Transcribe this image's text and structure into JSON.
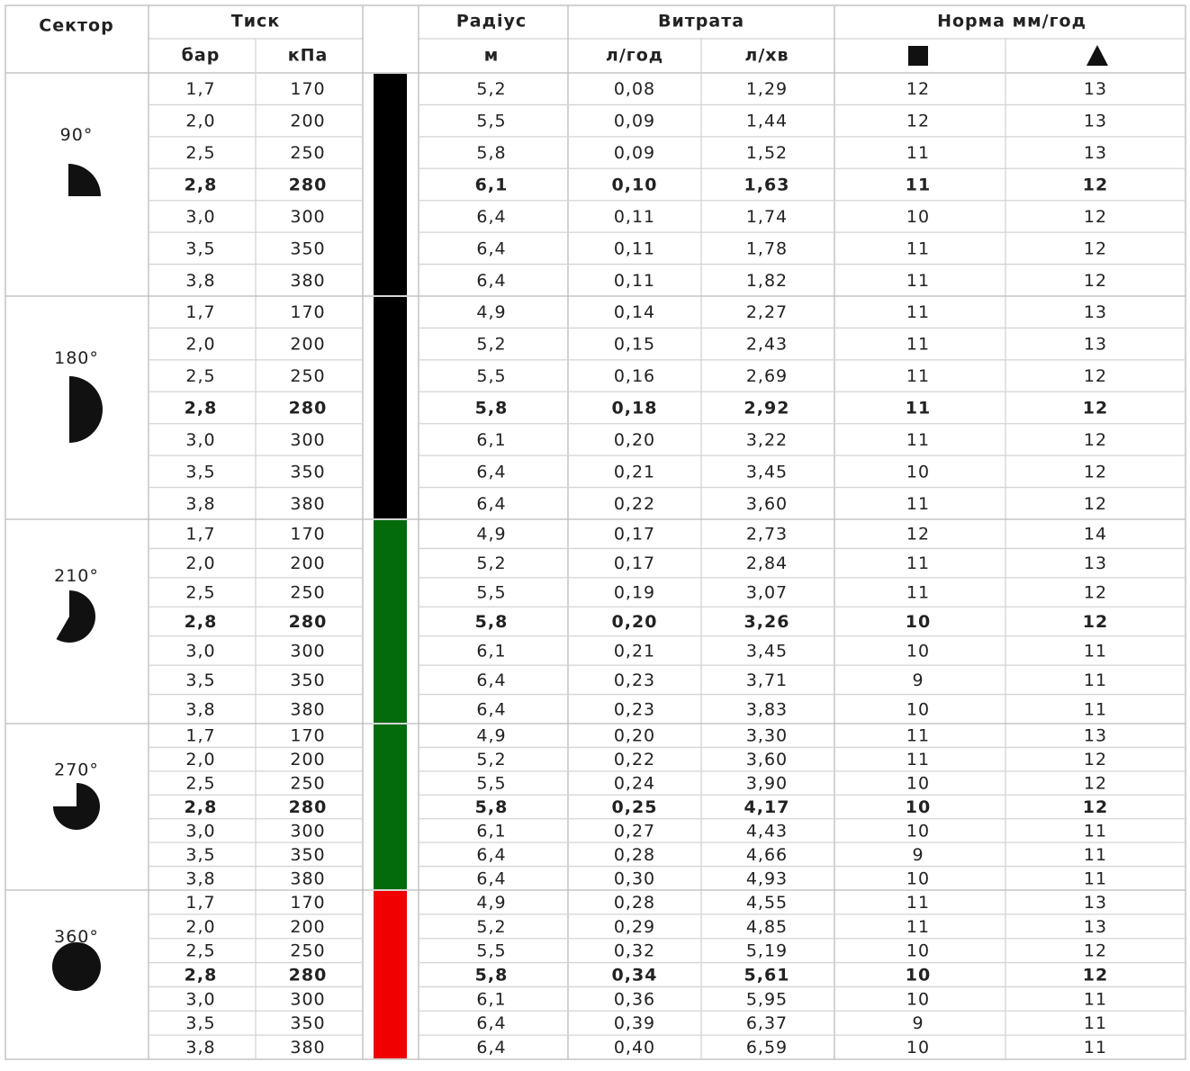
{
  "header": {
    "sector": "Сектор",
    "pressure": "Тиск",
    "bar": "бар",
    "kpa": "кПа",
    "radius": "Радіус",
    "m": "м",
    "flow": "Витрата",
    "lph": "л/год",
    "lpm": "л/хв",
    "rate": "Норма мм/год"
  },
  "groups": [
    {
      "sector": "90°",
      "color": "#000000",
      "rows": [
        [
          "1,7",
          "170",
          "5,2",
          "0,08",
          "1,29",
          "12",
          "13"
        ],
        [
          "2,0",
          "200",
          "5,5",
          "0,09",
          "1,44",
          "12",
          "13"
        ],
        [
          "2,5",
          "250",
          "5,8",
          "0,09",
          "1,52",
          "11",
          "13"
        ],
        [
          "2,8",
          "280",
          "6,1",
          "0,10",
          "1,63",
          "11",
          "12"
        ],
        [
          "3,0",
          "300",
          "6,4",
          "0,11",
          "1,74",
          "10",
          "12"
        ],
        [
          "3,5",
          "350",
          "6,4",
          "0,11",
          "1,78",
          "11",
          "12"
        ],
        [
          "3,8",
          "380",
          "6,4",
          "0,11",
          "1,82",
          "11",
          "12"
        ]
      ]
    },
    {
      "sector": "180°",
      "color": "#000000",
      "rows": [
        [
          "1,7",
          "170",
          "4,9",
          "0,14",
          "2,27",
          "11",
          "13"
        ],
        [
          "2,0",
          "200",
          "5,2",
          "0,15",
          "2,43",
          "11",
          "13"
        ],
        [
          "2,5",
          "250",
          "5,5",
          "0,16",
          "2,69",
          "11",
          "12"
        ],
        [
          "2,8",
          "280",
          "5,8",
          "0,18",
          "2,92",
          "11",
          "12"
        ],
        [
          "3,0",
          "300",
          "6,1",
          "0,20",
          "3,22",
          "11",
          "12"
        ],
        [
          "3,5",
          "350",
          "6,4",
          "0,21",
          "3,45",
          "10",
          "12"
        ],
        [
          "3,8",
          "380",
          "6,4",
          "0,22",
          "3,60",
          "11",
          "12"
        ]
      ]
    },
    {
      "sector": "210°",
      "color": "#046b0c",
      "rows": [
        [
          "1,7",
          "170",
          "4,9",
          "0,17",
          "2,73",
          "12",
          "14"
        ],
        [
          "2,0",
          "200",
          "5,2",
          "0,17",
          "2,84",
          "11",
          "13"
        ],
        [
          "2,5",
          "250",
          "5,5",
          "0,19",
          "3,07",
          "11",
          "12"
        ],
        [
          "2,8",
          "280",
          "5,8",
          "0,20",
          "3,26",
          "10",
          "12"
        ],
        [
          "3,0",
          "300",
          "6,1",
          "0,21",
          "3,45",
          "10",
          "11"
        ],
        [
          "3,5",
          "350",
          "6,4",
          "0,23",
          "3,71",
          "9",
          "11"
        ],
        [
          "3,8",
          "380",
          "6,4",
          "0,23",
          "3,83",
          "10",
          "11"
        ]
      ]
    },
    {
      "sector": "270°",
      "color": "#046b0c",
      "rows": [
        [
          "1,7",
          "170",
          "4,9",
          "0,20",
          "3,30",
          "11",
          "13"
        ],
        [
          "2,0",
          "200",
          "5,2",
          "0,22",
          "3,60",
          "11",
          "12"
        ],
        [
          "2,5",
          "250",
          "5,5",
          "0,24",
          "3,90",
          "10",
          "12"
        ],
        [
          "2,8",
          "280",
          "5,8",
          "0,25",
          "4,17",
          "10",
          "12"
        ],
        [
          "3,0",
          "300",
          "6,1",
          "0,27",
          "4,43",
          "10",
          "11"
        ],
        [
          "3,5",
          "350",
          "6,4",
          "0,28",
          "4,66",
          "9",
          "11"
        ],
        [
          "3,8",
          "380",
          "6,4",
          "0,30",
          "4,93",
          "10",
          "11"
        ]
      ]
    },
    {
      "sector": "360°",
      "color": "#f00000",
      "rows": [
        [
          "1,7",
          "170",
          "4,9",
          "0,28",
          "4,55",
          "11",
          "13"
        ],
        [
          "2,0",
          "200",
          "5,2",
          "0,29",
          "4,85",
          "11",
          "13"
        ],
        [
          "2,5",
          "250",
          "5,5",
          "0,32",
          "5,19",
          "10",
          "12"
        ],
        [
          "2,8",
          "280",
          "5,8",
          "0,34",
          "5,61",
          "10",
          "12"
        ],
        [
          "3,0",
          "300",
          "6,1",
          "0,36",
          "5,95",
          "10",
          "11"
        ],
        [
          "3,5",
          "350",
          "6,4",
          "0,39",
          "6,37",
          "9",
          "11"
        ],
        [
          "3,8",
          "380",
          "6,4",
          "0,40",
          "6,59",
          "10",
          "11"
        ]
      ]
    }
  ]
}
